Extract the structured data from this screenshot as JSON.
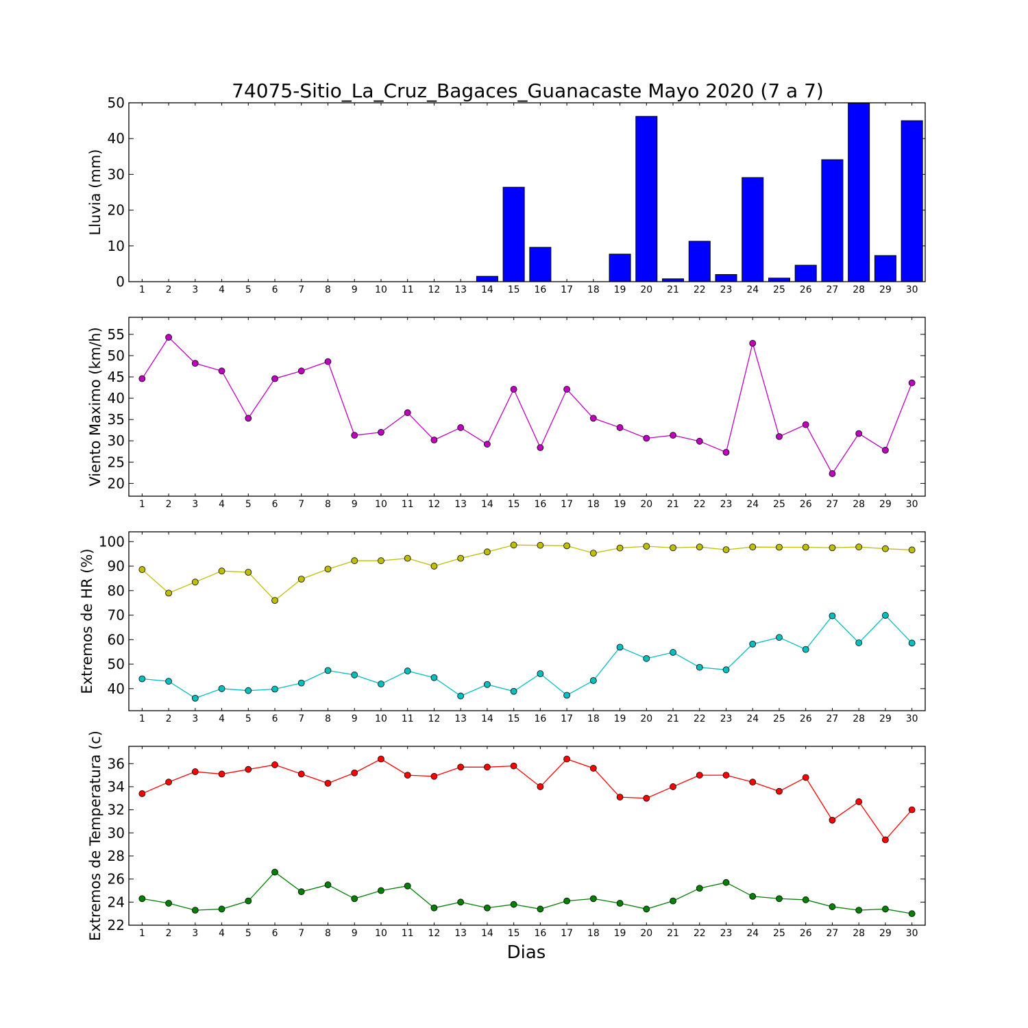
{
  "chart_data": {
    "type": "multi-panel",
    "title": "74075-Sitio_La_Cruz_Bagaces_Guanacaste Mayo 2020  (7 a 7)",
    "xlabel": "Dias",
    "days": [
      1,
      2,
      3,
      4,
      5,
      6,
      7,
      8,
      9,
      10,
      11,
      12,
      13,
      14,
      15,
      16,
      17,
      18,
      19,
      20,
      21,
      22,
      23,
      24,
      25,
      26,
      27,
      28,
      29,
      30
    ],
    "panels": [
      {
        "type": "bar",
        "ylabel": "Lluvia (mm)",
        "ylim": [
          0,
          50
        ],
        "yticks": [
          0,
          10,
          20,
          30,
          40,
          50
        ],
        "series": [
          {
            "color": "#0000ff",
            "values": [
              0,
              0,
              0,
              0,
              0,
              0,
              0,
              0,
              0,
              0,
              0,
              0,
              0,
              1.5,
              26.4,
              9.6,
              0,
              0,
              7.7,
              46.2,
              0.8,
              11.3,
              2.0,
              29.1,
              1.0,
              4.6,
              34.1,
              49.9,
              7.3,
              45.0
            ]
          }
        ]
      },
      {
        "type": "line",
        "ylabel": "Viento Maximo (km/h)",
        "ylim": [
          17,
          59
        ],
        "yticks": [
          20,
          25,
          30,
          35,
          40,
          45,
          50,
          55
        ],
        "series": [
          {
            "color": "#bf00bf",
            "values": [
              44.6,
              54.3,
              48.2,
              46.4,
              35.3,
              44.6,
              46.4,
              48.6,
              31.3,
              32.0,
              36.6,
              30.2,
              33.1,
              29.2,
              42.1,
              28.4,
              42.1,
              35.3,
              33.1,
              30.6,
              31.3,
              29.9,
              27.3,
              52.9,
              31.0,
              33.8,
              22.3,
              31.7,
              27.8,
              43.6
            ]
          }
        ]
      },
      {
        "type": "line",
        "ylabel": "Extremos de HR (%)",
        "ylim": [
          31,
          104
        ],
        "yticks": [
          40,
          50,
          60,
          70,
          80,
          90,
          100
        ],
        "series": [
          {
            "color": "#bfbf00",
            "values": [
              88.6,
              79.0,
              83.5,
              88.0,
              87.5,
              76.0,
              84.7,
              88.8,
              92.2,
              92.2,
              93.2,
              90.0,
              93.2,
              95.8,
              98.6,
              98.5,
              98.3,
              95.3,
              97.4,
              98.1,
              97.5,
              97.8,
              96.7,
              97.8,
              97.7,
              97.7,
              97.5,
              97.8,
              97.1,
              96.6
            ]
          },
          {
            "color": "#00bfbf",
            "values": [
              44.0,
              43.0,
              36.1,
              40.0,
              39.2,
              39.8,
              42.3,
              47.4,
              45.6,
              41.9,
              47.2,
              44.5,
              37.0,
              41.7,
              38.9,
              46.1,
              37.3,
              43.3,
              56.9,
              52.3,
              54.8,
              48.7,
              47.7,
              58.2,
              60.9,
              56.0,
              69.7,
              58.7,
              69.9,
              58.6
            ]
          }
        ]
      },
      {
        "type": "line",
        "ylabel": "Extremos de Temperatura (c)",
        "ylim": [
          22,
          37.5
        ],
        "yticks": [
          22,
          24,
          26,
          28,
          30,
          32,
          34,
          36
        ],
        "series": [
          {
            "color": "#ff0000",
            "values": [
              33.4,
              34.4,
              35.3,
              35.1,
              35.5,
              35.9,
              35.1,
              34.3,
              35.2,
              36.4,
              35.0,
              34.9,
              35.7,
              35.7,
              35.8,
              34.0,
              36.4,
              35.6,
              33.1,
              33.0,
              34.0,
              35.0,
              35.0,
              34.4,
              33.6,
              34.8,
              31.1,
              32.7,
              29.4,
              32.0
            ]
          },
          {
            "color": "#008000",
            "values": [
              24.3,
              23.9,
              23.3,
              23.4,
              24.1,
              26.6,
              24.9,
              25.5,
              24.3,
              25.0,
              25.4,
              23.5,
              24.0,
              23.5,
              23.8,
              23.4,
              24.1,
              24.3,
              23.9,
              23.4,
              24.1,
              25.2,
              25.7,
              24.5,
              24.3,
              24.2,
              23.6,
              23.3,
              23.4,
              23.0
            ]
          }
        ]
      }
    ]
  }
}
